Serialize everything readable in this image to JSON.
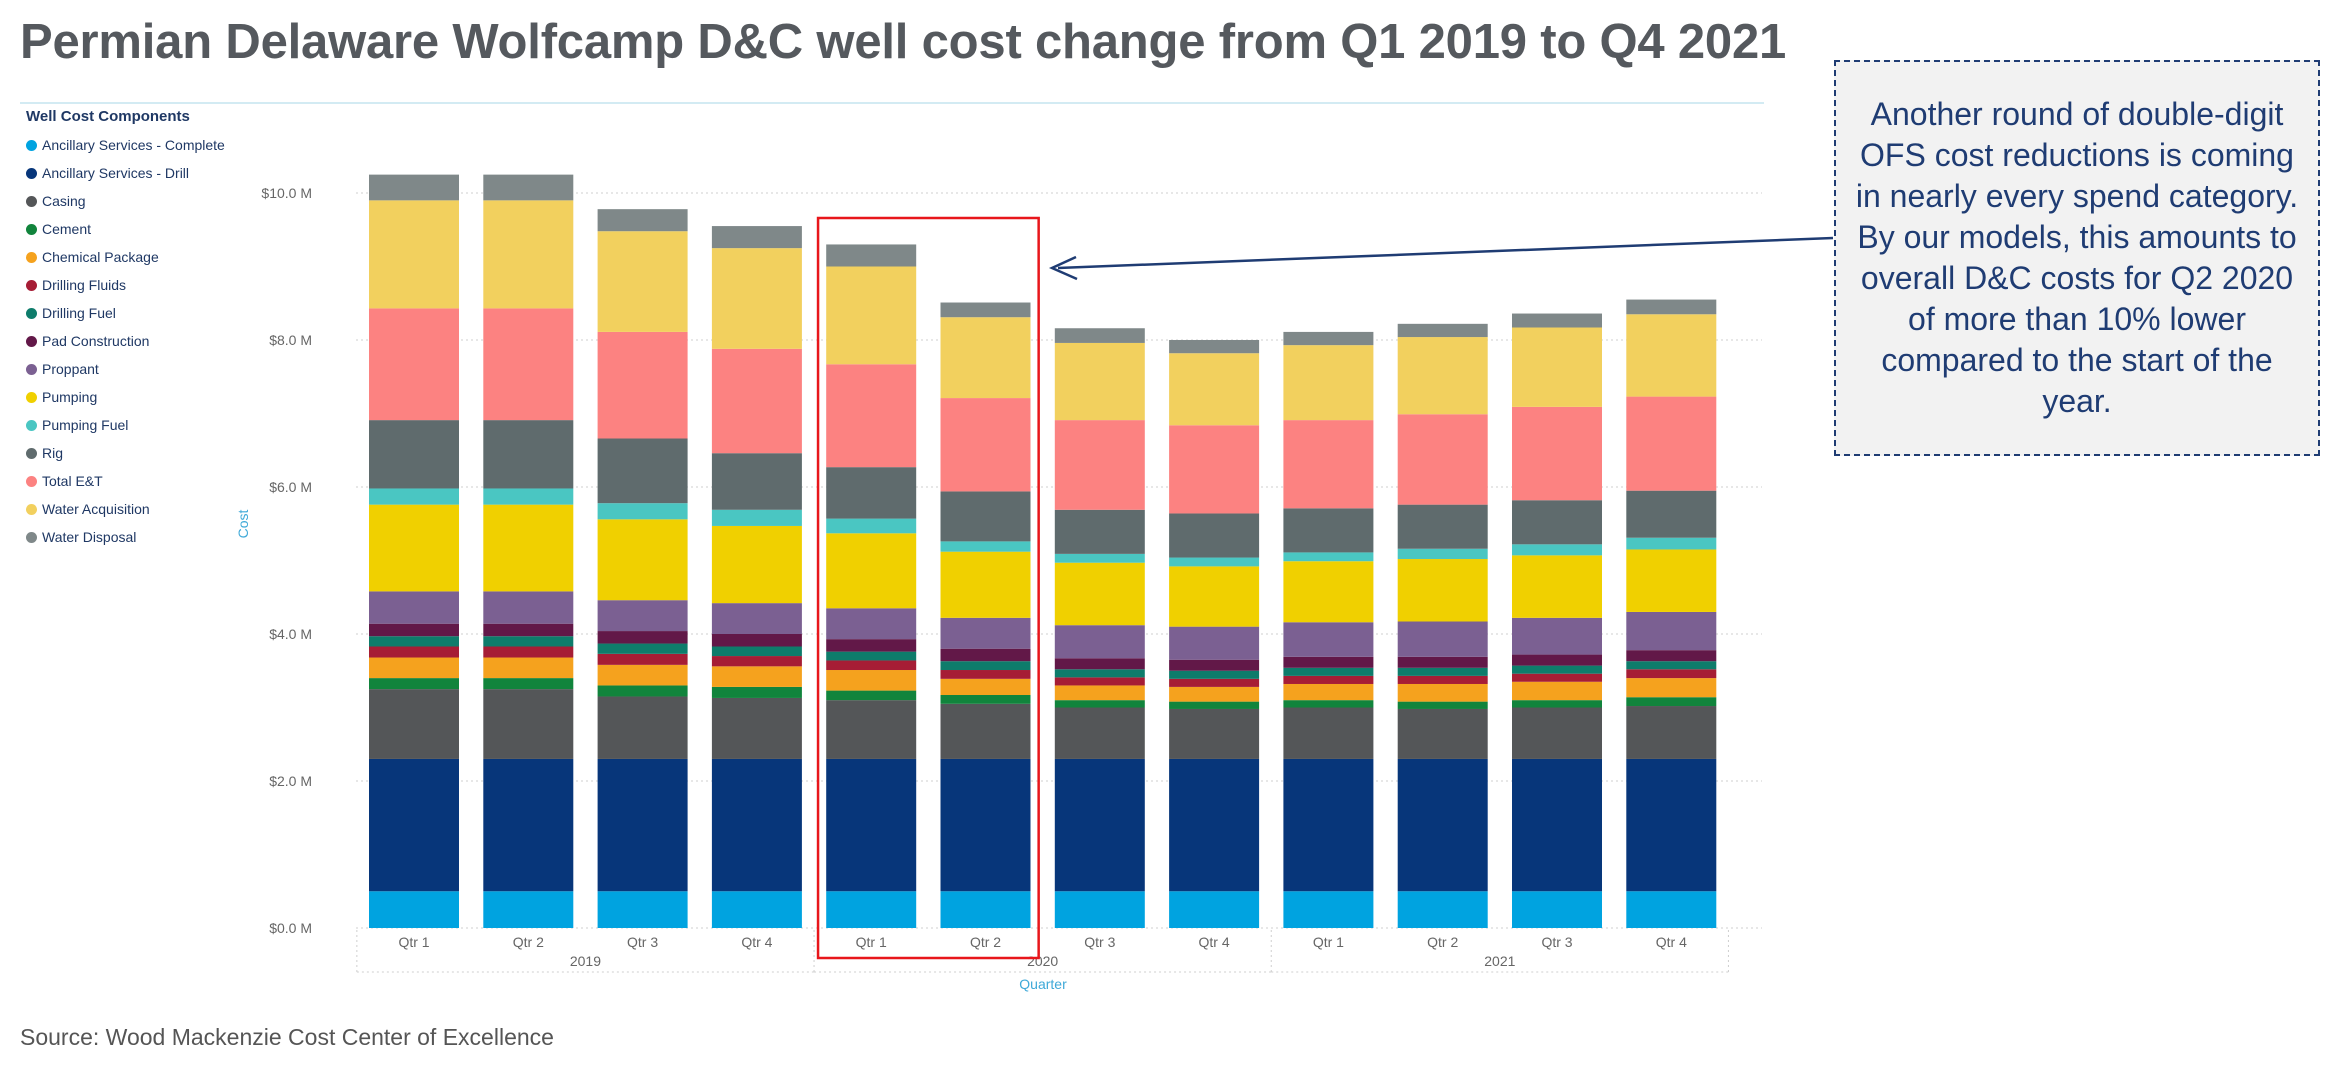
{
  "title": "Permian Delaware Wolfcamp D&C well cost change from Q1 2019 to Q4 2021",
  "source": "Source: Wood Mackenzie Cost Center of Excellence",
  "callout": "Another round of double-digit OFS cost reductions is coming in nearly every spend category. By our models, this amounts to overall D&C costs for Q2 2020 of more than 10% lower compared to the start of the year.",
  "legend": {
    "title": "Well Cost Components",
    "items": [
      {
        "label": "Ancillary Services - Complete",
        "color": "#00a3e0"
      },
      {
        "label": "Ancillary Services - Drill",
        "color": "#07367a"
      },
      {
        "label": "Casing",
        "color": "#545658"
      },
      {
        "label": "Cement",
        "color": "#11843c"
      },
      {
        "label": "Chemical Package",
        "color": "#f5a21e"
      },
      {
        "label": "Drilling Fluids",
        "color": "#a61d35"
      },
      {
        "label": "Drilling Fuel",
        "color": "#0e7c6b"
      },
      {
        "label": "Pad Construction",
        "color": "#621848"
      },
      {
        "label": "Proppant",
        "color": "#7b6092"
      },
      {
        "label": "Pumping",
        "color": "#f0d000"
      },
      {
        "label": "Pumping Fuel",
        "color": "#4ac6c2"
      },
      {
        "label": "Rig",
        "color": "#5f6b6d"
      },
      {
        "label": "Total E&T",
        "color": "#fc8281"
      },
      {
        "label": "Water Acquisition",
        "color": "#f2d05e"
      },
      {
        "label": "Water Disposal",
        "color": "#7f8889"
      }
    ]
  },
  "chart_data": {
    "type": "bar",
    "stacked": true,
    "ylabel": "Cost",
    "xlabel": "Quarter",
    "ylim": [
      0,
      10.2
    ],
    "yticks": [
      0,
      2,
      4,
      6,
      8,
      10
    ],
    "ytick_labels": [
      "$0.0 M",
      "$2.0 M",
      "$4.0 M",
      "$6.0 M",
      "$8.0 M",
      "$10.0 M"
    ],
    "categories": [
      "Qtr 1",
      "Qtr 2",
      "Qtr 3",
      "Qtr 4",
      "Qtr 1",
      "Qtr 2",
      "Qtr 3",
      "Qtr 4",
      "Qtr 1",
      "Qtr 2",
      "Qtr 3",
      "Qtr 4"
    ],
    "year_groups": [
      {
        "label": "2019",
        "start": 0,
        "end": 3
      },
      {
        "label": "2020",
        "start": 4,
        "end": 7
      },
      {
        "label": "2021",
        "start": 8,
        "end": 11
      }
    ],
    "highlight": {
      "start": 4,
      "end": 5
    },
    "series": [
      {
        "name": "Ancillary Services - Complete",
        "values": [
          0.5,
          0.5,
          0.5,
          0.5,
          0.5,
          0.5,
          0.5,
          0.5,
          0.5,
          0.5,
          0.5,
          0.5
        ]
      },
      {
        "name": "Ancillary Services - Drill",
        "values": [
          1.8,
          1.8,
          1.8,
          1.8,
          1.8,
          1.8,
          1.8,
          1.8,
          1.8,
          1.8,
          1.8,
          1.8
        ]
      },
      {
        "name": "Casing",
        "values": [
          0.95,
          0.95,
          0.85,
          0.83,
          0.8,
          0.75,
          0.7,
          0.68,
          0.7,
          0.68,
          0.7,
          0.72
        ]
      },
      {
        "name": "Cement",
        "values": [
          0.15,
          0.15,
          0.15,
          0.15,
          0.13,
          0.12,
          0.1,
          0.1,
          0.1,
          0.1,
          0.1,
          0.12
        ]
      },
      {
        "name": "Chemical Package",
        "values": [
          0.28,
          0.28,
          0.28,
          0.28,
          0.28,
          0.22,
          0.2,
          0.2,
          0.22,
          0.24,
          0.25,
          0.26
        ]
      },
      {
        "name": "Drilling Fluids",
        "values": [
          0.15,
          0.15,
          0.15,
          0.14,
          0.13,
          0.12,
          0.11,
          0.11,
          0.11,
          0.11,
          0.11,
          0.12
        ]
      },
      {
        "name": "Drilling Fuel",
        "values": [
          0.14,
          0.14,
          0.14,
          0.13,
          0.12,
          0.12,
          0.11,
          0.11,
          0.11,
          0.11,
          0.11,
          0.11
        ]
      },
      {
        "name": "Pad Construction",
        "values": [
          0.17,
          0.17,
          0.17,
          0.17,
          0.17,
          0.17,
          0.15,
          0.15,
          0.15,
          0.15,
          0.15,
          0.15
        ]
      },
      {
        "name": "Proppant",
        "values": [
          0.44,
          0.44,
          0.42,
          0.42,
          0.42,
          0.42,
          0.45,
          0.45,
          0.47,
          0.48,
          0.5,
          0.52
        ]
      },
      {
        "name": "Pumping",
        "values": [
          1.18,
          1.18,
          1.1,
          1.05,
          1.02,
          0.9,
          0.85,
          0.82,
          0.83,
          0.85,
          0.85,
          0.85
        ]
      },
      {
        "name": "Pumping Fuel",
        "values": [
          0.22,
          0.22,
          0.22,
          0.22,
          0.2,
          0.14,
          0.12,
          0.12,
          0.12,
          0.14,
          0.15,
          0.16
        ]
      },
      {
        "name": "Rig",
        "values": [
          0.93,
          0.93,
          0.88,
          0.77,
          0.7,
          0.68,
          0.6,
          0.6,
          0.6,
          0.6,
          0.6,
          0.64
        ]
      },
      {
        "name": "Total E&T",
        "values": [
          1.52,
          1.52,
          1.45,
          1.42,
          1.4,
          1.27,
          1.22,
          1.2,
          1.2,
          1.23,
          1.27,
          1.28
        ]
      },
      {
        "name": "Water Acquisition",
        "values": [
          1.47,
          1.47,
          1.37,
          1.37,
          1.33,
          1.1,
          1.05,
          0.98,
          1.02,
          1.05,
          1.08,
          1.12
        ]
      },
      {
        "name": "Water Disposal",
        "values": [
          0.35,
          0.35,
          0.3,
          0.3,
          0.3,
          0.2,
          0.2,
          0.18,
          0.18,
          0.18,
          0.19,
          0.2
        ]
      }
    ]
  }
}
